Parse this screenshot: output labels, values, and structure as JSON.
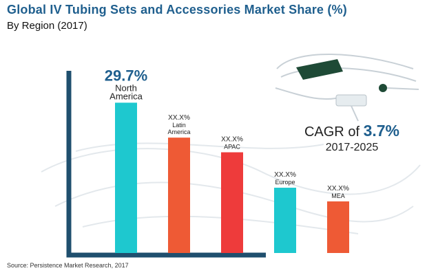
{
  "header": {
    "title": "Global IV Tubing Sets and Accessories Market Share (%)",
    "subtitle": "By Region  (2017)"
  },
  "cagr": {
    "prefix": "CAGR",
    "of_word": "of",
    "value": "3.7%",
    "period": "2017-2025"
  },
  "source": "Source: Persistence Market Research, 2017",
  "colors": {
    "title": "#1f5f8e",
    "axis": "#1f4f6e",
    "north_america": "#1ec8cf",
    "latin_america": "#ee5a35",
    "apac": "#ee3b3b",
    "europe": "#1ec8cf",
    "mea": "#ee5a35"
  },
  "chart_data": {
    "type": "bar",
    "title": "Global IV Tubing Sets and Accessories Market Share (%)",
    "subtitle": "By Region  (2017)",
    "xlabel": "",
    "ylabel": "",
    "grid": false,
    "categories": [
      "North America",
      "Latin America",
      "APAC",
      "Europe",
      "MEA"
    ],
    "category_lines": [
      [
        "North",
        "America"
      ],
      [
        "Latin",
        "America"
      ],
      [
        "APAC"
      ],
      [
        "Europe"
      ],
      [
        "MEA"
      ]
    ],
    "value_labels": [
      "29.7%",
      "XX.X%",
      "XX.X%",
      "XX.X%",
      "XX.X%"
    ],
    "values": [
      29.7,
      22.8,
      19.9,
      12.9,
      10.2
    ],
    "ylim": [
      0,
      36
    ]
  }
}
